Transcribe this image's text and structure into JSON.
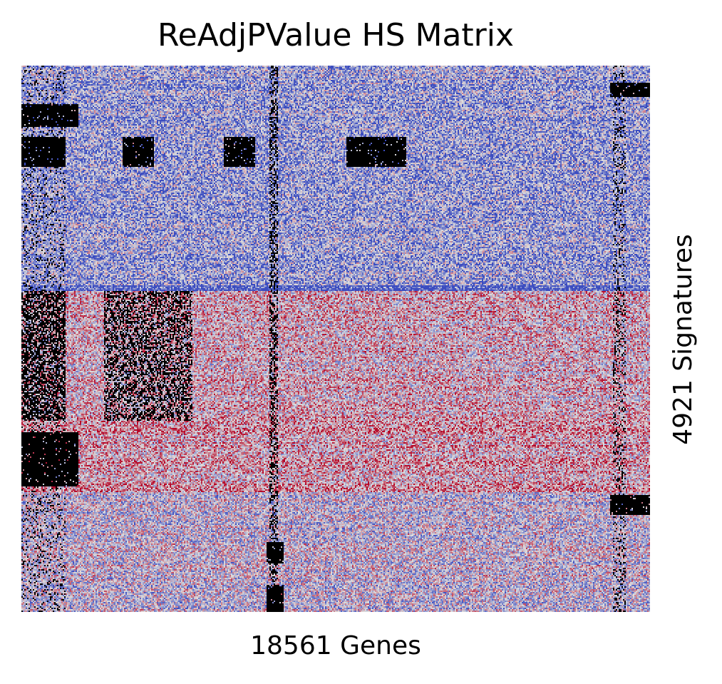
{
  "chart_data": {
    "type": "heatmap",
    "title": "ReAdjPValue HS Matrix",
    "xlabel": "18561 Genes",
    "ylabel": "4921 Signatures",
    "n_columns": 18561,
    "n_rows": 4921,
    "axes_ticks": false,
    "colorbar": false,
    "colormap": {
      "name": "coolwarm",
      "low": "#3b4cc0",
      "mid": "#dddddd",
      "high": "#b40426",
      "missing": "#000000"
    },
    "row_bands": [
      {
        "rows": [
          0.0,
          0.4
        ],
        "tone": "blue"
      },
      {
        "rows": [
          0.4,
          0.41
        ],
        "tone": "deep-blue"
      },
      {
        "rows": [
          0.41,
          0.65
        ],
        "tone": "pink-warm"
      },
      {
        "rows": [
          0.65,
          0.78
        ],
        "tone": "warm"
      },
      {
        "rows": [
          0.78,
          1.0
        ],
        "tone": "mixed"
      }
    ],
    "missing_blocks": [
      {
        "cols": [
          0.0,
          0.09
        ],
        "rows": [
          0.07,
          0.11
        ]
      },
      {
        "cols": [
          0.0,
          0.07
        ],
        "rows": [
          0.13,
          0.185
        ]
      },
      {
        "cols": [
          0.16,
          0.21
        ],
        "rows": [
          0.13,
          0.185
        ]
      },
      {
        "cols": [
          0.32,
          0.37
        ],
        "rows": [
          0.13,
          0.185
        ]
      },
      {
        "cols": [
          0.515,
          0.61
        ],
        "rows": [
          0.13,
          0.185
        ]
      },
      {
        "cols": [
          0.935,
          1.0
        ],
        "rows": [
          0.03,
          0.055
        ]
      },
      {
        "cols": [
          0.0,
          0.09
        ],
        "rows": [
          0.67,
          0.77
        ]
      },
      {
        "cols": [
          0.935,
          1.0
        ],
        "rows": [
          0.785,
          0.82
        ]
      },
      {
        "cols": [
          0.39,
          0.415
        ],
        "rows": [
          0.87,
          0.91
        ]
      },
      {
        "cols": [
          0.39,
          0.415
        ],
        "rows": [
          0.95,
          1.0
        ]
      }
    ],
    "missing_columns": [
      {
        "col": 0.4,
        "width": 0.006,
        "density": 0.85
      },
      {
        "col": 0.95,
        "width": 0.01,
        "density": 0.4
      },
      {
        "col": 0.03,
        "width": 0.04,
        "density": 0.25
      }
    ]
  }
}
